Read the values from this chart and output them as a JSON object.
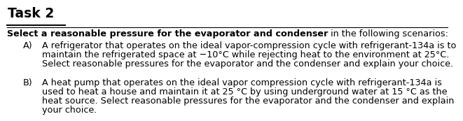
{
  "title": "Task 2",
  "line1_bold": "Select a reasonable pressure for the evaporator and condenser",
  "line1_normal": " in the following scenarios:",
  "sectionA_label": "A)",
  "sectionA_line1": "A refrigerator that operates on the ideal vapor-compression cycle with refrigerant-134a is to",
  "sectionA_line2": "maintain the refrigerated space at −10°C while rejecting heat to the environment at 25°C.",
  "sectionA_line3": "Select reasonable pressures for the evaporator and the condenser and explain your choice.",
  "sectionB_label": "B)",
  "sectionB_line1": "A heat pump that operates on the ideal vapor compression cycle with refrigerant-134a is",
  "sectionB_line2": "used to heat a house and maintain it at 25 °C by using underground water at 15 °C as the",
  "sectionB_line3": "heat source. Select reasonable pressures for the evaporator and the condenser and explain",
  "sectionB_line4": "your choice.",
  "bg_color": "#ffffff",
  "text_color": "#000000",
  "font_size": 9.2,
  "title_font_size": 13.5
}
